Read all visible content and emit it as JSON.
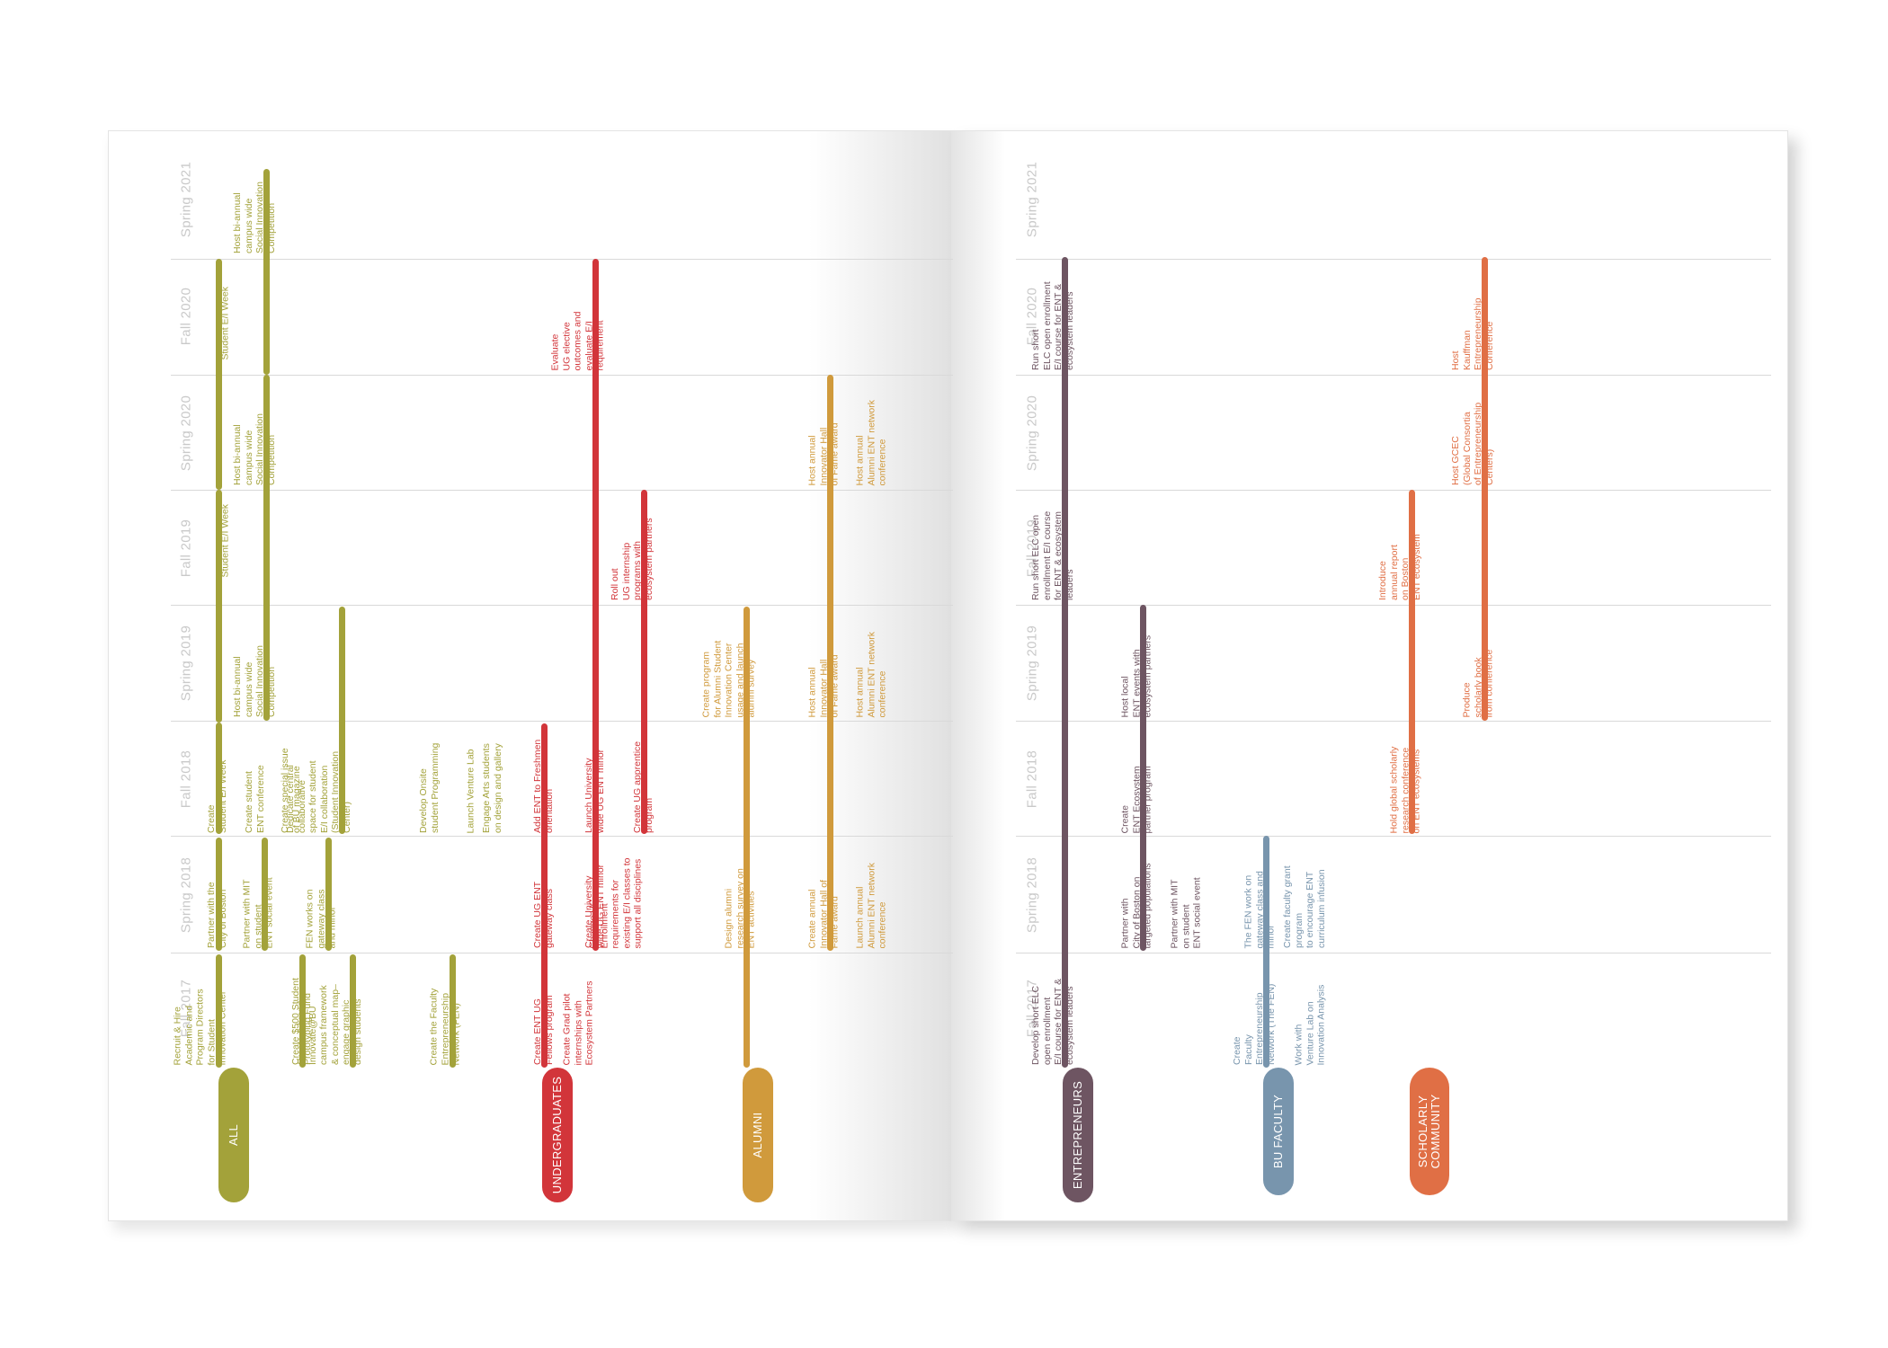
{
  "colors": {
    "all": "#a3a23a",
    "undergraduates": "#d2353a",
    "alumni": "#d09a3c",
    "entrepreneurs": "#6e5562",
    "bu_faculty": "#7895ad",
    "scholarly": "#e06f45",
    "term_label": "#c9c9c9",
    "grid": "#d9d9d9"
  },
  "terms": [
    "Fall 2017",
    "Spring 2018",
    "Fall 2018",
    "Spring 2019",
    "Fall 2019",
    "Spring 2020",
    "Fall 2020",
    "Spring 2021"
  ],
  "groups": {
    "all": "ALL",
    "undergraduates": "UNDERGRADUATES",
    "alumni": "ALUMNI",
    "entrepreneurs": "ENTREPRENEURS",
    "bu_faculty": "BU FACULTY",
    "scholarly": "SCHOLARLY\nCOMMUNITY"
  },
  "items": {
    "all": [
      "Recruit & Hire\nAcademic and\nProgram Directors\nfor Student\nInnovation Center",
      "Create $500 Student\nPrototyping Fund",
      "Create & brand\nInnovate@BU\ncampus framework\n& conceptual map–\nengage graphic\ndesign students",
      "Create the Faculty\nEntrepreneurship\nNetwork (FEN)",
      "Partner with the\nCity of Boston",
      "Partner with MIT\non student\nENT social event",
      "FEN works on\ngateway class\nand minor",
      "Create\nStudent E/I Week",
      "Create student\nENT conference",
      "Create special issue\nof BU magazine",
      "Dedicate central\ncollaborative\nspace for student\nE/I collaboration\n(Student Innovation\nCenter)",
      "Develop Onsite\nstudent Programming",
      "Launch Venture Lab",
      "Engage Arts students\non design and gallery",
      "Host bi-annual\ncampus wide\nSocial Innovation\nCompetition",
      "Student E/I Week",
      "Host bi-annual\ncampus wide\nSocial Innovation\nCompetition",
      "Student E/I Week",
      "Host bi-annual\ncampus wide\nSocial Innovation\nCompetition"
    ],
    "undergraduates": [
      "Create ENT UG\nFellows program",
      "Create Grad pilot\ninternships with\nEcosystem Partners",
      "Create UG ENT\ngateway class",
      "Create University\nwide UG ENT minor",
      "Change UG\nEnrollment\nrequirements for\nexisting E/I classes to\nsupport all disciplines",
      "Add ENT to Freshmen\norientation",
      "Launch University\nwide UG ENT minor",
      "Create UG apprentice\nprogram",
      "Roll out\nUG internship\nprograms with\necosystem partners",
      "Evaluate\nUG elective\noutcomes and\nevaluate E/I\nrequirement"
    ],
    "alumni": [
      "Design alumni\nresearch survey on\nENT activities",
      "Create program\nfor Alumni Student\nInnovation Center\nusage and launch\nalumni survey",
      "Create annual\nInnovator Hall of\nFame award",
      "Launch annual\nAlumni ENT network\nconference",
      "Host annual\nInnovator Hall\nof Fame award",
      "Host annual\nAlumni ENT network\nconference",
      "Host annual\nInnovator Hall\nof Fame award",
      "Host annual\nAlumni ENT network\nconference"
    ],
    "entrepreneurs": [
      "Develop short ELC\nopen enrollment\nE/I course for ENT &\necosystem leaders",
      "Run short ELC open\nenrollment E/I course\nfor ENT & ecosystem\nleaders",
      "Run short\nELC open enrollment\nE/I course for ENT &\necosystem leaders",
      "Partner with\nCity of Boston on\ntargeted populations",
      "Partner with MIT\non student\nENT social event",
      "Create\nENT Ecosystem\npartner program",
      "Host local\nENT events with\necosystem partners"
    ],
    "bu_faculty": [
      "Create\nFaculty\nEntrepreneurship\nNetwork (The FEN)",
      "Work with\nVenture Lab on\nInnovation Analysis",
      "The FEN work on\ngateway class and\nminor",
      "Create faculty grant\nprogram\nto encourage ENT\ncurriculum infusion"
    ],
    "scholarly": [
      "Hold global scholarly\nresearch conference\non ENT ecosystems",
      "Introduce\nannual report\non Boston\nENT ecosystem",
      "Produce\nscholarly book\nfrom conference",
      "Host GCEC\n(Global Consortia\nof Entrepreneurship\nCenters)",
      "Host\nKauffman\nEntrepreneurship\nConference"
    ]
  }
}
